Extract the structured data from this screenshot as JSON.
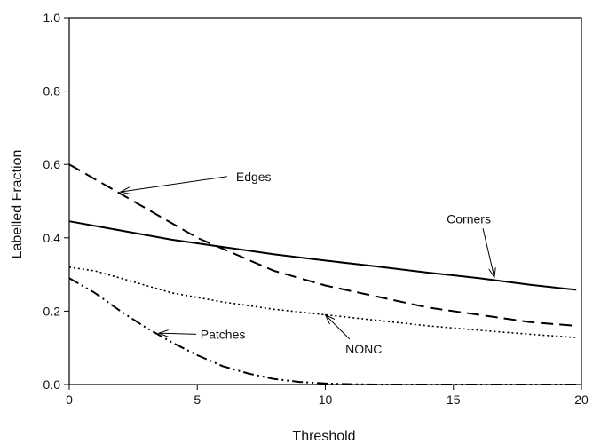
{
  "chart_data": {
    "type": "line",
    "title": "",
    "xlabel": "Threshold",
    "ylabel": "Labelled Fraction",
    "xlim": [
      0,
      20
    ],
    "ylim": [
      0,
      1.0
    ],
    "x_ticks": [
      "0",
      "5",
      "10",
      "15",
      "20"
    ],
    "y_ticks": [
      "0.0",
      "0.2",
      "0.4",
      "0.6",
      "0.8",
      "1.0"
    ],
    "grid": false,
    "legend": "none",
    "series": [
      {
        "name": "Corners",
        "style": "solid",
        "x": [
          0,
          2,
          4,
          6,
          8,
          10,
          12,
          14,
          16,
          18,
          19.8
        ],
        "y": [
          0.445,
          0.42,
          0.395,
          0.375,
          0.355,
          0.338,
          0.322,
          0.305,
          0.29,
          0.272,
          0.258
        ]
      },
      {
        "name": "Edges",
        "style": "dashed",
        "x": [
          0,
          1,
          2,
          3,
          4,
          5,
          6,
          7,
          8,
          10,
          12,
          14,
          16,
          18,
          19.8
        ],
        "y": [
          0.6,
          0.56,
          0.52,
          0.48,
          0.44,
          0.4,
          0.37,
          0.34,
          0.31,
          0.27,
          0.24,
          0.21,
          0.19,
          0.17,
          0.16
        ]
      },
      {
        "name": "NONC",
        "style": "dotted",
        "x": [
          0,
          1,
          2,
          4,
          6,
          8,
          10,
          12,
          14,
          16,
          18,
          19.8
        ],
        "y": [
          0.32,
          0.31,
          0.29,
          0.25,
          0.225,
          0.205,
          0.19,
          0.175,
          0.16,
          0.148,
          0.137,
          0.128
        ]
      },
      {
        "name": "Patches",
        "style": "dashdot",
        "x": [
          0,
          1,
          2,
          3,
          4,
          5,
          6,
          7,
          8,
          9,
          10,
          11,
          12,
          14,
          16,
          18,
          19.8
        ],
        "y": [
          0.29,
          0.25,
          0.2,
          0.155,
          0.115,
          0.08,
          0.05,
          0.03,
          0.015,
          0.007,
          0.003,
          0.001,
          0.0,
          0.0,
          0.0,
          0.0,
          0.0
        ]
      }
    ],
    "annotations": [
      {
        "text": "Edges",
        "series": "Edges",
        "text_x": 7.2,
        "text_y": 0.555,
        "arrow_to_x": 2.0,
        "arrow_to_y": 0.525
      },
      {
        "text": "Corners",
        "series": "Corners",
        "text_x": 15.6,
        "text_y": 0.44,
        "arrow_to_x": 16.6,
        "arrow_to_y": 0.292
      },
      {
        "text": "NONC",
        "series": "NONC",
        "text_x": 11.5,
        "text_y": 0.085,
        "arrow_to_x": 10.0,
        "arrow_to_y": 0.19
      },
      {
        "text": "Patches",
        "series": "Patches",
        "text_x": 6.0,
        "text_y": 0.125,
        "arrow_to_x": 3.5,
        "arrow_to_y": 0.14
      }
    ],
    "colors": {
      "line": "#000000",
      "axis": "#000000"
    }
  }
}
